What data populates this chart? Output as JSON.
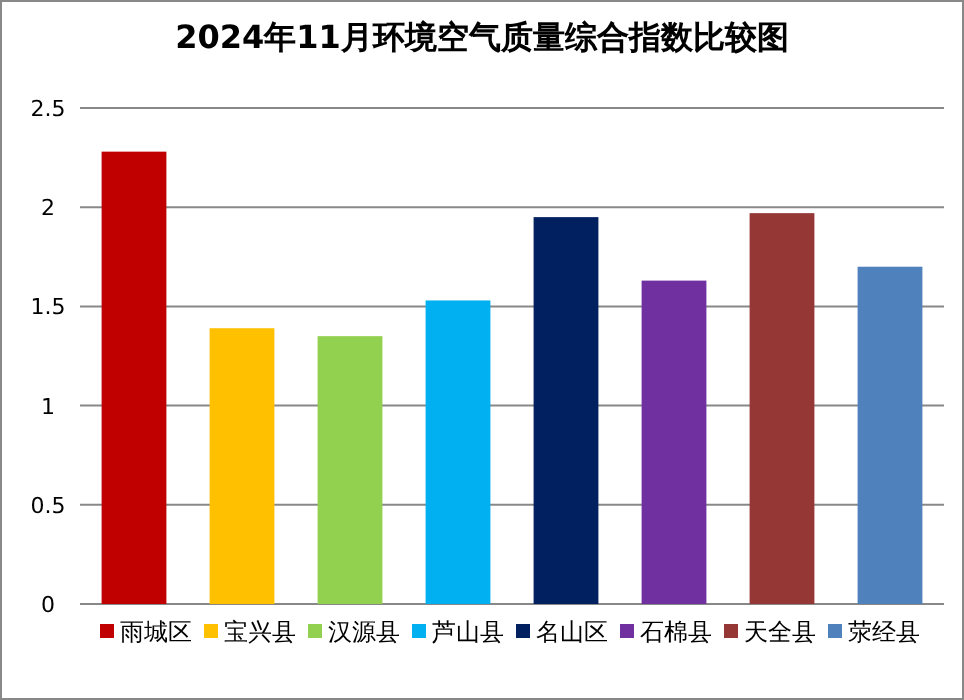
{
  "chart_data": {
    "type": "bar",
    "title": "2024年11月环境空气质量综合指数比较图",
    "categories": [
      null,
      null,
      null,
      null,
      null,
      null,
      null,
      null
    ],
    "series": [
      {
        "name": "雨城区",
        "color": "#c00000",
        "values": [
          2.28,
          null,
          null,
          null,
          null,
          null,
          null,
          null
        ]
      },
      {
        "name": "宝兴县",
        "color": "#ffc000",
        "values": [
          null,
          1.39,
          null,
          null,
          null,
          null,
          null,
          null
        ]
      },
      {
        "name": "汉源县",
        "color": "#92d050",
        "values": [
          null,
          null,
          1.35,
          null,
          null,
          null,
          null,
          null
        ]
      },
      {
        "name": "芦山县",
        "color": "#00b0f0",
        "values": [
          null,
          null,
          null,
          1.53,
          null,
          null,
          null,
          null
        ]
      },
      {
        "name": "名山区",
        "color": "#002060",
        "values": [
          null,
          null,
          null,
          null,
          1.95,
          null,
          null,
          null
        ]
      },
      {
        "name": "石棉县",
        "color": "#7030a0",
        "values": [
          null,
          null,
          null,
          null,
          null,
          1.63,
          null,
          null
        ]
      },
      {
        "name": "天全县",
        "color": "#953735",
        "values": [
          null,
          null,
          null,
          null,
          null,
          null,
          1.97,
          null
        ]
      },
      {
        "name": "荥经县",
        "color": "#4f81bd",
        "values": [
          null,
          null,
          null,
          null,
          null,
          null,
          null,
          1.7
        ]
      }
    ],
    "ylim": [
      0,
      2.5
    ],
    "yticks": [
      0,
      0.5,
      1,
      1.5,
      2,
      2.5
    ],
    "grid": "y",
    "legend": "bottom",
    "tick_labels": "y"
  }
}
